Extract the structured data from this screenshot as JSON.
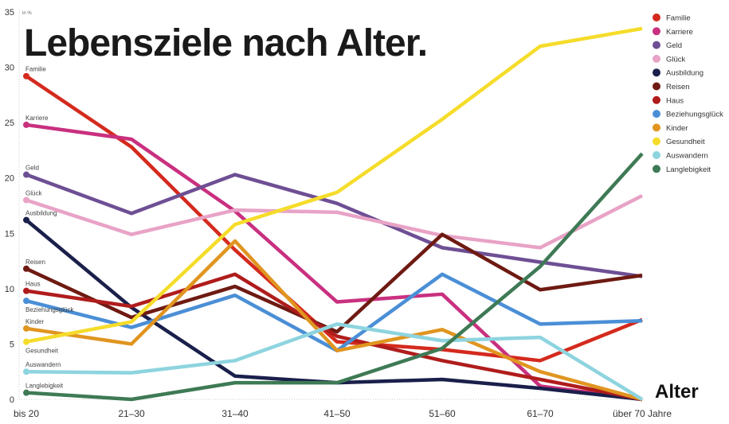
{
  "chart_data": {
    "type": "line",
    "title": "Lebensziele nach Alter.",
    "ylabel": "in %",
    "xlabel": "Alter",
    "ylim": [
      0,
      35
    ],
    "yticks": [
      0,
      5,
      10,
      15,
      20,
      25,
      30,
      35
    ],
    "grid": false,
    "legend_placement": "right",
    "categories": [
      "bis 20",
      "21–30",
      "31–40",
      "41–50",
      "51–60",
      "61–70",
      "über 70 Jahre"
    ],
    "series": [
      {
        "name": "Familie",
        "color": "#d42a1e",
        "values": [
          29.2,
          22.8,
          13.5,
          5.2,
          4.5,
          3.5,
          7.2
        ]
      },
      {
        "name": "Karriere",
        "color": "#c9307f",
        "values": [
          24.8,
          23.5,
          17.0,
          8.8,
          9.5,
          1.2,
          0
        ]
      },
      {
        "name": "Geld",
        "color": "#6e4f94",
        "values": [
          20.3,
          16.8,
          20.3,
          17.7,
          13.7,
          12.4,
          11.1
        ]
      },
      {
        "name": "Glück",
        "color": "#e8a3c6",
        "values": [
          18.0,
          14.9,
          17.1,
          16.9,
          14.8,
          13.7,
          18.4
        ]
      },
      {
        "name": "Ausbildung",
        "color": "#1a1f4b",
        "values": [
          16.2,
          8.3,
          2.1,
          1.5,
          1.8,
          1.0,
          0
        ]
      },
      {
        "name": "Reisen",
        "color": "#6e1a12",
        "values": [
          11.8,
          7.4,
          10.2,
          6.1,
          14.9,
          9.9,
          11.2
        ]
      },
      {
        "name": "Haus",
        "color": "#b01c1c",
        "values": [
          9.8,
          8.4,
          11.3,
          5.7,
          3.5,
          1.8,
          0
        ]
      },
      {
        "name": "Beziehungsglück",
        "color": "#4a8fd6",
        "values": [
          8.9,
          6.5,
          9.4,
          4.4,
          11.3,
          6.8,
          7.1
        ]
      },
      {
        "name": "Kinder",
        "color": "#e09520",
        "values": [
          6.4,
          5.0,
          14.3,
          4.4,
          6.3,
          2.5,
          0
        ]
      },
      {
        "name": "Gesundheit",
        "color": "#f5dc2a",
        "values": [
          5.2,
          7.0,
          15.8,
          18.7,
          25.3,
          31.9,
          33.5
        ]
      },
      {
        "name": "Auswandern",
        "color": "#8dd4df",
        "values": [
          2.5,
          2.4,
          3.5,
          6.8,
          5.3,
          5.6,
          0
        ]
      },
      {
        "name": "Langlebigkeit",
        "color": "#3e7a55",
        "values": [
          0.6,
          0,
          1.5,
          1.5,
          4.6,
          12.0,
          22.2
        ]
      }
    ]
  }
}
